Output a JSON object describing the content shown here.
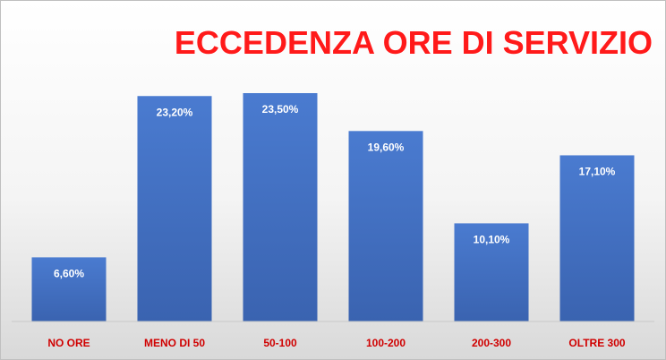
{
  "chart_data": {
    "type": "bar",
    "title": "ECCEDENZA ORE DI SERVIZIO",
    "categories": [
      "NO ORE",
      "MENO DI 50",
      "50-100",
      "100-200",
      "200-300",
      "OLTRE 300"
    ],
    "values": [
      6.6,
      23.2,
      23.5,
      19.6,
      10.1,
      17.1
    ],
    "data_labels": [
      "6,60%",
      "23,20%",
      "23,50%",
      "19,60%",
      "10,10%",
      "17,10%"
    ],
    "xlabel": "",
    "ylabel": "",
    "ylim": [
      0,
      25
    ],
    "grid": false,
    "legend": "none",
    "colors": {
      "bar": "#4472c4",
      "bar_dark": "#2f5597",
      "title": "#ff1a1a",
      "category_label": "#d00000",
      "value_label": "#ffffff"
    }
  }
}
